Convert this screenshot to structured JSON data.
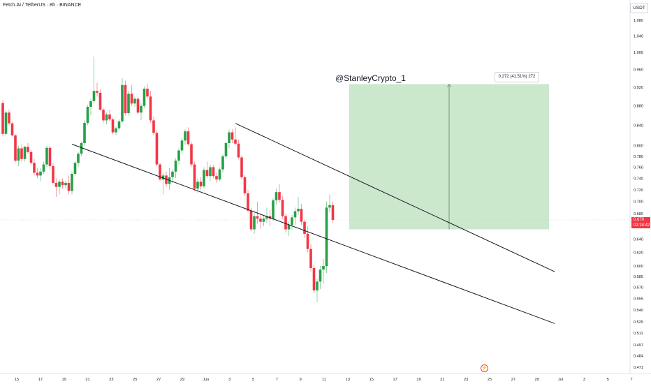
{
  "header": {
    "symbol_title": "Fetch.AI / TetherUS · 8h · BINANCE",
    "currency": "USDT",
    "watermark": "@StanleyCrypto_1"
  },
  "measurement": {
    "label": "0.272 (41.51%) 272",
    "from_price": 0.655,
    "to_price": 0.927
  },
  "last_price": {
    "value": "0.670",
    "countdown": "02:24:42",
    "color": "#f23645"
  },
  "colors": {
    "up": "#26a047",
    "down": "#f23645",
    "target_fill": "#c8e6c9",
    "grid": "#f0f3fa"
  },
  "chart_data": {
    "type": "candlestick",
    "y_axis": {
      "scale": "log",
      "range": [
        0.466,
        1.12
      ],
      "tick_labels": [
        "1.080",
        "1.040",
        "1.000",
        "0.960",
        "0.920",
        "0.880",
        "0.840",
        "0.800",
        "0.780",
        "0.760",
        "0.740",
        "0.720",
        "0.700",
        "0.680",
        "0.660",
        "0.640",
        "0.620",
        "0.600",
        "0.585",
        "0.570",
        "0.555",
        "0.540",
        "0.525",
        "0.511",
        "0.497",
        "0.484",
        "0.471"
      ]
    },
    "x_axis": {
      "tick_labels": [
        "15",
        "17",
        "19",
        "21",
        "23",
        "25",
        "27",
        "29",
        "Jun",
        "3",
        "5",
        "7",
        "9",
        "11",
        "13",
        "15",
        "17",
        "19",
        "21",
        "23",
        "25",
        "27",
        "29",
        "Jul",
        "3",
        "5",
        "7"
      ]
    },
    "candles": [
      [
        0.886,
        0.892,
        0.818,
        0.823
      ],
      [
        0.823,
        0.87,
        0.818,
        0.866
      ],
      [
        0.866,
        0.872,
        0.84,
        0.844
      ],
      [
        0.844,
        0.848,
        0.818,
        0.82
      ],
      [
        0.82,
        0.823,
        0.768,
        0.772
      ],
      [
        0.772,
        0.8,
        0.762,
        0.795
      ],
      [
        0.795,
        0.803,
        0.77,
        0.775
      ],
      [
        0.775,
        0.8,
        0.77,
        0.798
      ],
      [
        0.798,
        0.805,
        0.785,
        0.788
      ],
      [
        0.788,
        0.792,
        0.765,
        0.768
      ],
      [
        0.768,
        0.775,
        0.745,
        0.75
      ],
      [
        0.75,
        0.758,
        0.74,
        0.745
      ],
      [
        0.745,
        0.758,
        0.735,
        0.752
      ],
      [
        0.752,
        0.77,
        0.748,
        0.765
      ],
      [
        0.765,
        0.8,
        0.76,
        0.796
      ],
      [
        0.796,
        0.8,
        0.755,
        0.762
      ],
      [
        0.762,
        0.768,
        0.73,
        0.732
      ],
      [
        0.732,
        0.74,
        0.708,
        0.725
      ],
      [
        0.725,
        0.738,
        0.712,
        0.734
      ],
      [
        0.734,
        0.74,
        0.722,
        0.728
      ],
      [
        0.728,
        0.736,
        0.722,
        0.732
      ],
      [
        0.732,
        0.745,
        0.712,
        0.718
      ],
      [
        0.718,
        0.752,
        0.712,
        0.748
      ],
      [
        0.748,
        0.772,
        0.745,
        0.768
      ],
      [
        0.768,
        0.788,
        0.76,
        0.785
      ],
      [
        0.785,
        0.808,
        0.78,
        0.805
      ],
      [
        0.805,
        0.85,
        0.8,
        0.845
      ],
      [
        0.845,
        0.882,
        0.84,
        0.878
      ],
      [
        0.878,
        0.895,
        0.86,
        0.89
      ],
      [
        0.89,
        0.99,
        0.885,
        0.912
      ],
      [
        0.912,
        0.93,
        0.9,
        0.908
      ],
      [
        0.908,
        0.915,
        0.87,
        0.872
      ],
      [
        0.872,
        0.876,
        0.845,
        0.85
      ],
      [
        0.85,
        0.866,
        0.842,
        0.862
      ],
      [
        0.862,
        0.872,
        0.848,
        0.852
      ],
      [
        0.852,
        0.856,
        0.822,
        0.826
      ],
      [
        0.826,
        0.838,
        0.82,
        0.834
      ],
      [
        0.834,
        0.852,
        0.83,
        0.848
      ],
      [
        0.848,
        0.94,
        0.845,
        0.925
      ],
      [
        0.925,
        0.935,
        0.86,
        0.865
      ],
      [
        0.865,
        0.912,
        0.86,
        0.906
      ],
      [
        0.906,
        0.925,
        0.88,
        0.885
      ],
      [
        0.885,
        0.9,
        0.878,
        0.895
      ],
      [
        0.895,
        0.9,
        0.862,
        0.866
      ],
      [
        0.866,
        0.885,
        0.85,
        0.88
      ],
      [
        0.88,
        0.922,
        0.875,
        0.917
      ],
      [
        0.917,
        0.928,
        0.895,
        0.9
      ],
      [
        0.9,
        0.912,
        0.845,
        0.85
      ],
      [
        0.85,
        0.858,
        0.82,
        0.825
      ],
      [
        0.825,
        0.83,
        0.762,
        0.765
      ],
      [
        0.765,
        0.768,
        0.735,
        0.738
      ],
      [
        0.738,
        0.75,
        0.712,
        0.745
      ],
      [
        0.745,
        0.752,
        0.725,
        0.73
      ],
      [
        0.73,
        0.758,
        0.72,
        0.742
      ],
      [
        0.742,
        0.756,
        0.732,
        0.752
      ],
      [
        0.752,
        0.776,
        0.74,
        0.772
      ],
      [
        0.772,
        0.796,
        0.765,
        0.791
      ],
      [
        0.791,
        0.815,
        0.785,
        0.81
      ],
      [
        0.81,
        0.832,
        0.802,
        0.828
      ],
      [
        0.828,
        0.836,
        0.8,
        0.803
      ],
      [
        0.803,
        0.808,
        0.76,
        0.765
      ],
      [
        0.765,
        0.77,
        0.718,
        0.722
      ],
      [
        0.722,
        0.74,
        0.715,
        0.734
      ],
      [
        0.734,
        0.742,
        0.72,
        0.726
      ],
      [
        0.726,
        0.76,
        0.722,
        0.755
      ],
      [
        0.755,
        0.77,
        0.74,
        0.744
      ],
      [
        0.744,
        0.765,
        0.735,
        0.76
      ],
      [
        0.76,
        0.764,
        0.74,
        0.744
      ],
      [
        0.744,
        0.75,
        0.732,
        0.738
      ],
      [
        0.738,
        0.76,
        0.735,
        0.756
      ],
      [
        0.756,
        0.784,
        0.75,
        0.78
      ],
      [
        0.78,
        0.808,
        0.775,
        0.805
      ],
      [
        0.805,
        0.832,
        0.795,
        0.826
      ],
      [
        0.826,
        0.832,
        0.805,
        0.812
      ],
      [
        0.812,
        0.836,
        0.8,
        0.804
      ],
      [
        0.804,
        0.812,
        0.775,
        0.778
      ],
      [
        0.778,
        0.782,
        0.738,
        0.742
      ],
      [
        0.742,
        0.746,
        0.71,
        0.714
      ],
      [
        0.714,
        0.72,
        0.682,
        0.685
      ],
      [
        0.685,
        0.69,
        0.652,
        0.655
      ],
      [
        0.655,
        0.682,
        0.648,
        0.676
      ],
      [
        0.676,
        0.7,
        0.664,
        0.672
      ],
      [
        0.672,
        0.68,
        0.656,
        0.667
      ],
      [
        0.667,
        0.676,
        0.66,
        0.672
      ],
      [
        0.672,
        0.69,
        0.665,
        0.676
      ],
      [
        0.676,
        0.686,
        0.66,
        0.672
      ],
      [
        0.672,
        0.706,
        0.668,
        0.702
      ],
      [
        0.702,
        0.722,
        0.695,
        0.716
      ],
      [
        0.716,
        0.73,
        0.698,
        0.703
      ],
      [
        0.703,
        0.71,
        0.672,
        0.676
      ],
      [
        0.676,
        0.68,
        0.65,
        0.655
      ],
      [
        0.655,
        0.668,
        0.645,
        0.662
      ],
      [
        0.662,
        0.678,
        0.655,
        0.674
      ],
      [
        0.674,
        0.69,
        0.662,
        0.684
      ],
      [
        0.684,
        0.708,
        0.678,
        0.688
      ],
      [
        0.688,
        0.696,
        0.662,
        0.667
      ],
      [
        0.667,
        0.67,
        0.642,
        0.648
      ],
      [
        0.648,
        0.66,
        0.62,
        0.625
      ],
      [
        0.625,
        0.632,
        0.592,
        0.597
      ],
      [
        0.597,
        0.602,
        0.562,
        0.566
      ],
      [
        0.566,
        0.582,
        0.55,
        0.578
      ],
      [
        0.578,
        0.6,
        0.568,
        0.595
      ],
      [
        0.595,
        0.61,
        0.575,
        0.6
      ],
      [
        0.6,
        0.7,
        0.59,
        0.69
      ],
      [
        0.69,
        0.712,
        0.682,
        0.694
      ],
      [
        0.694,
        0.7,
        0.665,
        0.67
      ]
    ],
    "trendlines": [
      {
        "name": "upper",
        "from": {
          "candle": 74,
          "price": 0.844
        },
        "to": {
          "candle": 130,
          "price": 0.592
        }
      },
      {
        "name": "lower",
        "from": {
          "candle": 22,
          "price": 0.803
        },
        "to": {
          "candle": 130,
          "price": 0.523
        }
      }
    ],
    "target_zone": {
      "from_candle": 112,
      "to_candle": 130,
      "bottom": 0.655,
      "top": 0.927
    },
    "grid": false,
    "legend": "none"
  }
}
